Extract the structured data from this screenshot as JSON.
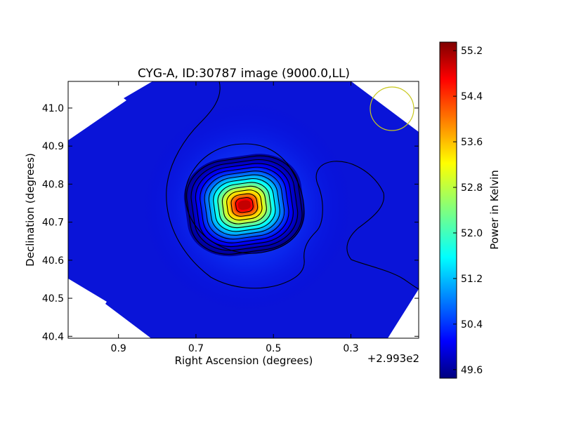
{
  "chart_data": {
    "type": "heatmap",
    "title": "CYG-A, ID:30787 image (9000.0,LL)",
    "xlabel": "Right Ascension (degrees)",
    "ylabel": "Declination (degrees)",
    "x_offset_label": "+2.993e2",
    "x_ticks": [
      {
        "value": 0.9,
        "label": "0.9"
      },
      {
        "value": 0.7,
        "label": "0.7"
      },
      {
        "value": 0.5,
        "label": "0.5"
      },
      {
        "value": 0.3,
        "label": "0.3"
      }
    ],
    "y_ticks": [
      {
        "value": 41.0,
        "label": "41.0"
      },
      {
        "value": 40.9,
        "label": "40.9"
      },
      {
        "value": 40.8,
        "label": "40.8"
      },
      {
        "value": 40.7,
        "label": "40.7"
      },
      {
        "value": 40.6,
        "label": "40.6"
      },
      {
        "value": 40.5,
        "label": "40.5"
      },
      {
        "value": 40.4,
        "label": "40.4"
      }
    ],
    "xlim": [
      1.03,
      0.125
    ],
    "ylim": [
      40.395,
      41.07
    ],
    "x_axis_inverted": true,
    "colorbar": {
      "label": "Power in Kelvin",
      "colormap": "jet",
      "range": [
        49.45,
        55.35
      ],
      "ticks": [
        {
          "value": 55.2,
          "label": "55.2"
        },
        {
          "value": 54.4,
          "label": "54.4"
        },
        {
          "value": 53.6,
          "label": "53.6"
        },
        {
          "value": 52.8,
          "label": "52.8"
        },
        {
          "value": 52.0,
          "label": "52.0"
        },
        {
          "value": 51.2,
          "label": "51.2"
        },
        {
          "value": 50.4,
          "label": "50.4"
        },
        {
          "value": 49.6,
          "label": "49.6"
        }
      ]
    },
    "source_peak": {
      "ra_offset": 0.575,
      "dec": 40.745,
      "value": 55.3
    },
    "background_level": 49.6,
    "beam_circle": {
      "ra_offset": 0.22,
      "dec": 41.0,
      "color": "#c8c81e"
    },
    "contours": "black"
  }
}
